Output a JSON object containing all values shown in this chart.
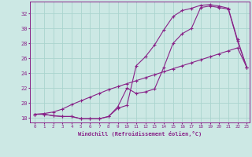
{
  "xlabel": "Windchill (Refroidissement éolien,°C)",
  "bg_color": "#cce8e4",
  "grid_color": "#aad4ce",
  "line_color": "#882288",
  "xmin": -0.5,
  "xmax": 23.3,
  "ymin": 17.4,
  "ymax": 33.6,
  "yticks": [
    18,
    20,
    22,
    24,
    26,
    28,
    30,
    32
  ],
  "xticks": [
    0,
    1,
    2,
    3,
    4,
    5,
    6,
    7,
    8,
    9,
    10,
    11,
    12,
    13,
    14,
    15,
    16,
    17,
    18,
    19,
    20,
    21,
    22,
    23
  ],
  "line1_x": [
    0,
    1,
    2,
    3,
    4,
    5,
    6,
    7,
    8,
    9,
    10,
    11,
    12,
    13,
    14,
    15,
    16,
    17,
    18,
    19,
    20,
    21,
    22,
    23
  ],
  "line1_y": [
    18.5,
    18.5,
    18.3,
    18.2,
    18.2,
    17.9,
    17.9,
    17.9,
    18.2,
    19.3,
    19.7,
    25.0,
    26.2,
    27.8,
    29.8,
    31.6,
    32.4,
    32.7,
    33.1,
    33.2,
    33.0,
    32.7,
    28.5,
    24.8
  ],
  "line2_x": [
    0,
    1,
    2,
    3,
    4,
    5,
    6,
    7,
    8,
    9,
    10,
    11,
    12,
    13,
    14,
    15,
    16,
    17,
    18,
    19,
    20,
    21,
    22,
    23
  ],
  "line2_y": [
    18.5,
    18.5,
    18.3,
    18.2,
    18.2,
    17.9,
    17.9,
    17.9,
    18.2,
    19.5,
    22.0,
    21.3,
    21.5,
    21.9,
    24.8,
    28.0,
    29.3,
    30.0,
    32.8,
    33.0,
    32.8,
    32.6,
    28.3,
    24.8
  ],
  "line3_x": [
    0,
    1,
    2,
    3,
    4,
    5,
    6,
    7,
    8,
    9,
    10,
    11,
    12,
    13,
    14,
    15,
    16,
    17,
    18,
    19,
    20,
    21,
    22,
    23
  ],
  "line3_y": [
    18.5,
    18.6,
    18.8,
    19.2,
    19.8,
    20.3,
    20.8,
    21.3,
    21.8,
    22.2,
    22.6,
    23.0,
    23.4,
    23.8,
    24.2,
    24.6,
    25.0,
    25.4,
    25.8,
    26.2,
    26.6,
    27.0,
    27.4,
    24.8
  ]
}
